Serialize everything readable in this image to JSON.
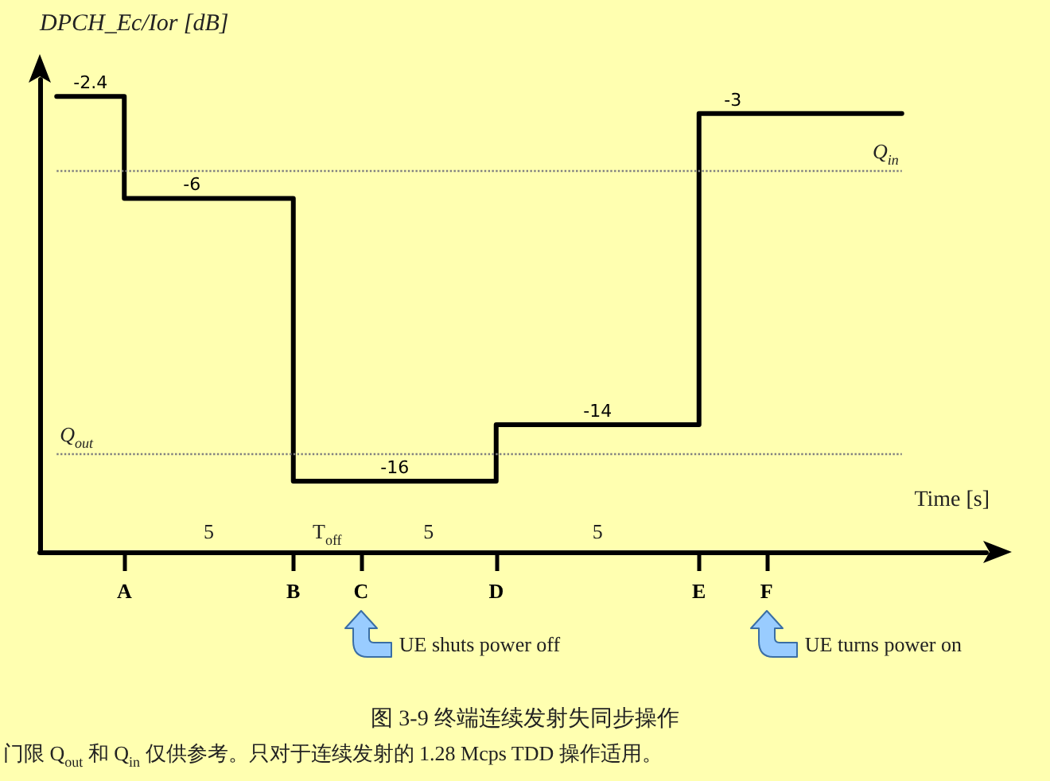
{
  "chart_data": {
    "type": "step",
    "title": "图 3-9 终端连续发射失同步操作",
    "xlabel": "Time [s]",
    "ylabel": "DPCH_Ec/Ior [dB]",
    "categories": [
      null,
      null,
      "A",
      null,
      null,
      null,
      null,
      "B",
      null,
      "C",
      null,
      null,
      null,
      "D",
      null,
      null,
      null,
      null,
      null,
      "E",
      null,
      "F",
      null,
      null,
      null,
      null,
      null,
      null
    ],
    "series": [
      {
        "color": "#000000",
        "values": [
          -2.4,
          -2.4,
          -6,
          -6,
          -6,
          -6,
          -6,
          -16,
          -16,
          -16,
          -16,
          -16,
          -16,
          -14,
          -14,
          -14,
          -14,
          -14,
          -14,
          -3,
          -3,
          -3,
          -3,
          -3,
          -3,
          -3,
          null,
          null
        ],
        "value_labels": [
          null,
          "-2.4",
          null,
          null,
          "-6",
          null,
          null,
          null,
          null,
          null,
          "-16",
          null,
          null,
          null,
          null,
          null,
          "-14",
          null,
          null,
          null,
          "-3",
          null,
          null,
          null,
          null,
          null,
          null,
          null
        ]
      }
    ],
    "ylim": [
      -18.5,
      -1.8
    ],
    "tick_labels": "x",
    "ref_lines": [
      {
        "axis": "y",
        "value": -5,
        "label": "Q$_{in}$",
        "color": "#808080",
        "line_style": "dotted"
      },
      {
        "axis": "y",
        "value": -15,
        "label": "Q$_{out}$",
        "color": "#808080",
        "line_style": "dotted"
      }
    ],
    "annotations": [
      "5",
      "T$_{off}$",
      "5",
      "5",
      "UE shuts power off",
      "UE turns power on",
      "门限 Q$_{out}$ 和 Q$_{in}$ 仅供参考。只对于连续发射的 1.28 Mcps TDD 操作适用。"
    ],
    "marker": "none",
    "line_style": "solid"
  }
}
